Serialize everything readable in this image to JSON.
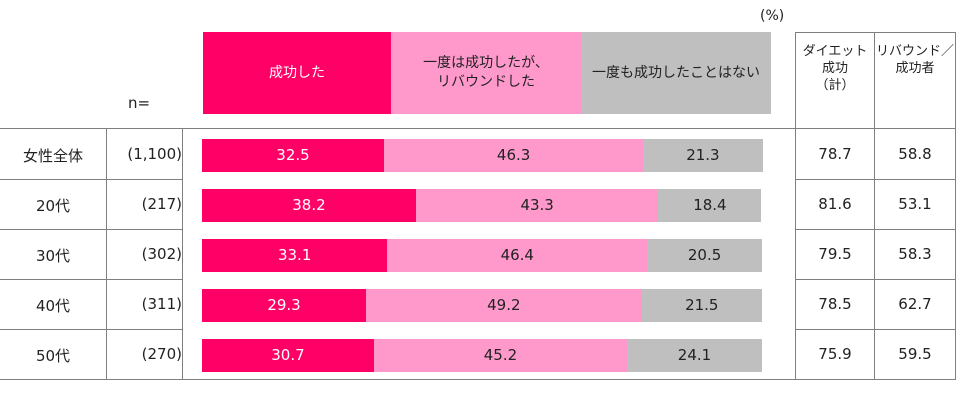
{
  "unit_label": "(%)",
  "n_label": "n=",
  "legend": [
    {
      "label": "成功した",
      "color": "#FF0066"
    },
    {
      "label": "一度は成功したが、\nリバウンドした",
      "color": "#FF99CC"
    },
    {
      "label": "一度も成功したことはない",
      "color": "#BFBFBF"
    }
  ],
  "extra_columns": [
    "ダイエット\n成功\n（計）",
    "リバウンド／\n成功者"
  ],
  "chart_data": {
    "type": "bar",
    "stacked": true,
    "orientation": "horizontal",
    "unit": "%",
    "categories": [
      "女性全体",
      "20代",
      "30代",
      "40代",
      "50代"
    ],
    "n": [
      "(1,100)",
      "(217)",
      "(302)",
      "(311)",
      "(270)"
    ],
    "series": [
      {
        "name": "成功した",
        "values": [
          32.5,
          38.2,
          33.1,
          29.3,
          30.7
        ],
        "color": "#FF0066"
      },
      {
        "name": "一度は成功したが、リバウンドした",
        "values": [
          46.3,
          43.3,
          46.4,
          49.2,
          45.2
        ],
        "color": "#FF99CC"
      },
      {
        "name": "一度も成功したことはない",
        "values": [
          21.3,
          18.4,
          20.5,
          21.5,
          24.1
        ],
        "color": "#BFBFBF"
      }
    ],
    "extra_values": {
      "ダイエット成功（計）": [
        78.7,
        81.6,
        79.5,
        78.5,
        75.9
      ],
      "リバウンド／成功者": [
        58.8,
        53.1,
        58.3,
        62.7,
        59.5
      ]
    },
    "xlim": [
      0,
      100
    ]
  }
}
